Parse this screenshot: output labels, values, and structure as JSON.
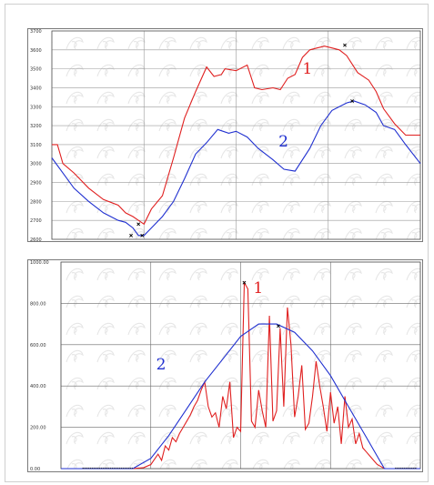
{
  "chart_data": [
    {
      "type": "line",
      "ylim": [
        2600,
        3700
      ],
      "yticks": [
        "3700",
        "3600",
        "3500",
        "3400",
        "3300",
        "3200",
        "3100",
        "3000",
        "2900",
        "2800",
        "2700",
        "2600"
      ],
      "yticks_values": [
        3700,
        3600,
        3500,
        3400,
        3300,
        3200,
        3100,
        3000,
        2900,
        2800,
        2700,
        2600
      ],
      "xlim": [
        0,
        1
      ],
      "grid": true,
      "colors": {
        "series_1": "#e02020",
        "series_2": "#2030d0",
        "grid": "#9a9a9a",
        "markers": "#000000"
      },
      "series": [
        {
          "label": "1",
          "x": [
            0,
            0.015,
            0.03,
            0.06,
            0.1,
            0.14,
            0.18,
            0.2,
            0.22,
            0.235,
            0.25,
            0.27,
            0.3,
            0.33,
            0.36,
            0.39,
            0.42,
            0.44,
            0.46,
            0.47,
            0.5,
            0.53,
            0.55,
            0.57,
            0.6,
            0.62,
            0.64,
            0.66,
            0.68,
            0.7,
            0.72,
            0.74,
            0.76,
            0.78,
            0.8,
            0.83,
            0.86,
            0.88,
            0.9,
            0.93,
            0.96,
            1.0
          ],
          "y": [
            3100,
            3100,
            3000,
            2950,
            2870,
            2810,
            2780,
            2740,
            2720,
            2700,
            2680,
            2760,
            2830,
            3030,
            3240,
            3380,
            3510,
            3460,
            3470,
            3500,
            3490,
            3520,
            3400,
            3390,
            3400,
            3390,
            3450,
            3470,
            3560,
            3600,
            3610,
            3620,
            3610,
            3600,
            3570,
            3480,
            3440,
            3380,
            3290,
            3210,
            3150,
            3150
          ]
        },
        {
          "label": "2",
          "x": [
            0,
            0.03,
            0.06,
            0.1,
            0.14,
            0.18,
            0.2,
            0.22,
            0.235,
            0.25,
            0.27,
            0.3,
            0.33,
            0.36,
            0.39,
            0.42,
            0.45,
            0.48,
            0.5,
            0.53,
            0.56,
            0.6,
            0.63,
            0.66,
            0.7,
            0.73,
            0.76,
            0.78,
            0.8,
            0.82,
            0.85,
            0.88,
            0.9,
            0.93,
            0.96,
            1.0
          ],
          "y": [
            3030,
            2950,
            2870,
            2800,
            2740,
            2700,
            2690,
            2660,
            2620,
            2620,
            2660,
            2720,
            2800,
            2920,
            3050,
            3110,
            3180,
            3160,
            3170,
            3140,
            3080,
            3020,
            2970,
            2960,
            3080,
            3200,
            3280,
            3300,
            3320,
            3330,
            3310,
            3270,
            3200,
            3180,
            3100,
            3000
          ]
        }
      ]
    },
    {
      "type": "line",
      "ylim": [
        0,
        1000
      ],
      "yticks": [
        "1000.00",
        "800.00",
        "600.00",
        "400.00",
        "200.00",
        "0.00"
      ],
      "yticks_values": [
        1000,
        800,
        600,
        400,
        200,
        0
      ],
      "xlim": [
        0,
        1
      ],
      "grid": true,
      "colors": {
        "series_1": "#e02020",
        "series_2": "#2030d0",
        "grid": "#6a6a6a",
        "markers": "#000000"
      },
      "series": [
        {
          "label": "1",
          "x": [
            0,
            0.05,
            0.1,
            0.15,
            0.2,
            0.23,
            0.25,
            0.27,
            0.28,
            0.29,
            0.3,
            0.31,
            0.32,
            0.33,
            0.34,
            0.35,
            0.36,
            0.37,
            0.38,
            0.39,
            0.4,
            0.41,
            0.42,
            0.43,
            0.44,
            0.45,
            0.46,
            0.47,
            0.48,
            0.49,
            0.5,
            0.51,
            0.52,
            0.53,
            0.54,
            0.55,
            0.56,
            0.57,
            0.58,
            0.59,
            0.6,
            0.61,
            0.62,
            0.63,
            0.64,
            0.65,
            0.66,
            0.67,
            0.68,
            0.69,
            0.7,
            0.71,
            0.72,
            0.73,
            0.74,
            0.75,
            0.76,
            0.77,
            0.78,
            0.79,
            0.8,
            0.81,
            0.82,
            0.83,
            0.84,
            0.85,
            0.86,
            0.87,
            0.88,
            0.89,
            0.9,
            0.92,
            0.95,
            1.0
          ],
          "y": [
            0,
            0,
            0,
            0,
            0,
            5,
            20,
            70,
            40,
            110,
            90,
            150,
            130,
            170,
            200,
            230,
            260,
            300,
            330,
            380,
            420,
            300,
            250,
            270,
            200,
            350,
            290,
            420,
            150,
            200,
            180,
            900,
            870,
            230,
            200,
            380,
            280,
            200,
            740,
            230,
            280,
            680,
            300,
            780,
            600,
            250,
            350,
            500,
            190,
            220,
            350,
            520,
            400,
            300,
            180,
            370,
            220,
            300,
            120,
            350,
            200,
            240,
            120,
            170,
            100,
            80,
            60,
            40,
            20,
            10,
            0,
            0,
            0,
            0
          ]
        },
        {
          "label": "2",
          "x": [
            0,
            0.2,
            0.25,
            0.3,
            0.35,
            0.4,
            0.45,
            0.5,
            0.55,
            0.6,
            0.65,
            0.7,
            0.75,
            0.8,
            0.85,
            0.88,
            0.9,
            1.0
          ],
          "y": [
            0,
            0,
            50,
            160,
            290,
            420,
            530,
            640,
            700,
            700,
            660,
            570,
            450,
            300,
            150,
            60,
            0,
            0
          ]
        }
      ]
    }
  ]
}
